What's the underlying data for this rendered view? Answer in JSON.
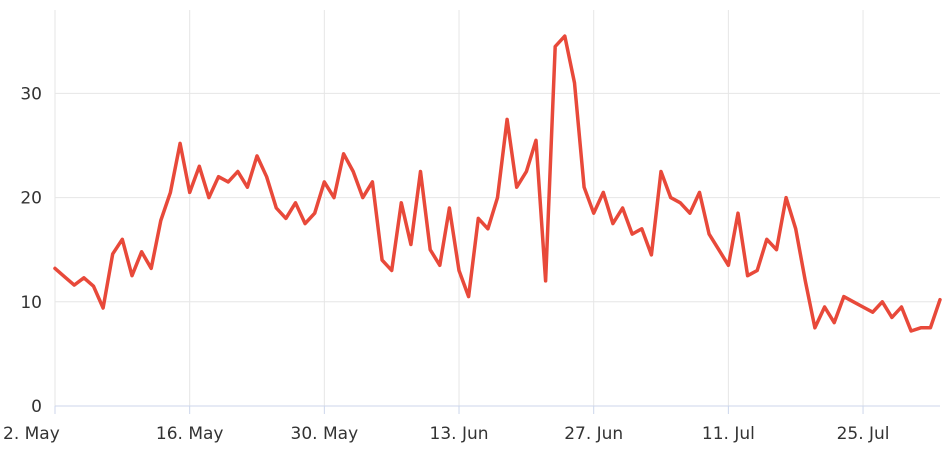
{
  "chart_data": {
    "type": "line",
    "title": "",
    "xlabel": "",
    "ylabel": "",
    "ylim": [
      0,
      38
    ],
    "grid": true,
    "line_color": "#e8493a",
    "x_ticks": [
      {
        "date": "2024-05-02",
        "label": "2. May"
      },
      {
        "date": "2024-05-16",
        "label": "16. May"
      },
      {
        "date": "2024-05-30",
        "label": "30. May"
      },
      {
        "date": "2024-06-13",
        "label": "13. Jun"
      },
      {
        "date": "2024-06-27",
        "label": "27. Jun"
      },
      {
        "date": "2024-07-11",
        "label": "11. Jul"
      },
      {
        "date": "2024-07-25",
        "label": "25. Jul"
      }
    ],
    "y_ticks": [
      0,
      10,
      20,
      30
    ],
    "series": [
      {
        "points": [
          [
            "2024-05-02",
            13.2
          ],
          [
            "2024-05-03",
            12.4
          ],
          [
            "2024-05-04",
            11.6
          ],
          [
            "2024-05-05",
            12.3
          ],
          [
            "2024-05-06",
            11.5
          ],
          [
            "2024-05-07",
            9.4
          ],
          [
            "2024-05-08",
            14.6
          ],
          [
            "2024-05-09",
            16.0
          ],
          [
            "2024-05-10",
            12.5
          ],
          [
            "2024-05-11",
            14.8
          ],
          [
            "2024-05-12",
            13.2
          ],
          [
            "2024-05-13",
            17.8
          ],
          [
            "2024-05-14",
            20.5
          ],
          [
            "2024-05-15",
            25.2
          ],
          [
            "2024-05-16",
            20.5
          ],
          [
            "2024-05-17",
            23.0
          ],
          [
            "2024-05-18",
            20.0
          ],
          [
            "2024-05-19",
            22.0
          ],
          [
            "2024-05-20",
            21.5
          ],
          [
            "2024-05-21",
            22.5
          ],
          [
            "2024-05-22",
            21.0
          ],
          [
            "2024-05-23",
            24.0
          ],
          [
            "2024-05-24",
            22.0
          ],
          [
            "2024-05-25",
            19.0
          ],
          [
            "2024-05-26",
            18.0
          ],
          [
            "2024-05-27",
            19.5
          ],
          [
            "2024-05-28",
            17.5
          ],
          [
            "2024-05-29",
            18.5
          ],
          [
            "2024-05-30",
            21.5
          ],
          [
            "2024-05-31",
            20.0
          ],
          [
            "2024-06-01",
            24.2
          ],
          [
            "2024-06-02",
            22.5
          ],
          [
            "2024-06-03",
            20.0
          ],
          [
            "2024-06-04",
            21.5
          ],
          [
            "2024-06-05",
            14.0
          ],
          [
            "2024-06-06",
            13.0
          ],
          [
            "2024-06-07",
            19.5
          ],
          [
            "2024-06-08",
            15.5
          ],
          [
            "2024-06-09",
            22.5
          ],
          [
            "2024-06-10",
            15.0
          ],
          [
            "2024-06-11",
            13.5
          ],
          [
            "2024-06-12",
            19.0
          ],
          [
            "2024-06-13",
            13.0
          ],
          [
            "2024-06-14",
            10.5
          ],
          [
            "2024-06-15",
            18.0
          ],
          [
            "2024-06-16",
            17.0
          ],
          [
            "2024-06-17",
            20.0
          ],
          [
            "2024-06-18",
            27.5
          ],
          [
            "2024-06-19",
            21.0
          ],
          [
            "2024-06-20",
            22.5
          ],
          [
            "2024-06-21",
            25.5
          ],
          [
            "2024-06-22",
            12.0
          ],
          [
            "2024-06-23",
            34.5
          ],
          [
            "2024-06-24",
            35.5
          ],
          [
            "2024-06-25",
            31.0
          ],
          [
            "2024-06-26",
            21.0
          ],
          [
            "2024-06-27",
            18.5
          ],
          [
            "2024-06-28",
            20.5
          ],
          [
            "2024-06-29",
            17.5
          ],
          [
            "2024-06-30",
            19.0
          ],
          [
            "2024-07-01",
            16.5
          ],
          [
            "2024-07-02",
            17.0
          ],
          [
            "2024-07-03",
            14.5
          ],
          [
            "2024-07-04",
            22.5
          ],
          [
            "2024-07-05",
            20.0
          ],
          [
            "2024-07-06",
            19.5
          ],
          [
            "2024-07-07",
            18.5
          ],
          [
            "2024-07-08",
            20.5
          ],
          [
            "2024-07-09",
            16.5
          ],
          [
            "2024-07-10",
            15.0
          ],
          [
            "2024-07-11",
            13.5
          ],
          [
            "2024-07-12",
            18.5
          ],
          [
            "2024-07-13",
            12.5
          ],
          [
            "2024-07-14",
            13.0
          ],
          [
            "2024-07-15",
            16.0
          ],
          [
            "2024-07-16",
            15.0
          ],
          [
            "2024-07-17",
            20.0
          ],
          [
            "2024-07-18",
            17.0
          ],
          [
            "2024-07-19",
            12.0
          ],
          [
            "2024-07-20",
            7.5
          ],
          [
            "2024-07-21",
            9.5
          ],
          [
            "2024-07-22",
            8.0
          ],
          [
            "2024-07-23",
            10.5
          ],
          [
            "2024-07-24",
            10.0
          ],
          [
            "2024-07-25",
            9.5
          ],
          [
            "2024-07-26",
            9.0
          ],
          [
            "2024-07-27",
            10.0
          ],
          [
            "2024-07-28",
            8.5
          ],
          [
            "2024-07-29",
            9.5
          ],
          [
            "2024-07-30",
            7.2
          ],
          [
            "2024-07-31",
            7.5
          ],
          [
            "2024-08-01",
            7.5
          ],
          [
            "2024-08-02",
            10.2
          ]
        ]
      }
    ]
  }
}
